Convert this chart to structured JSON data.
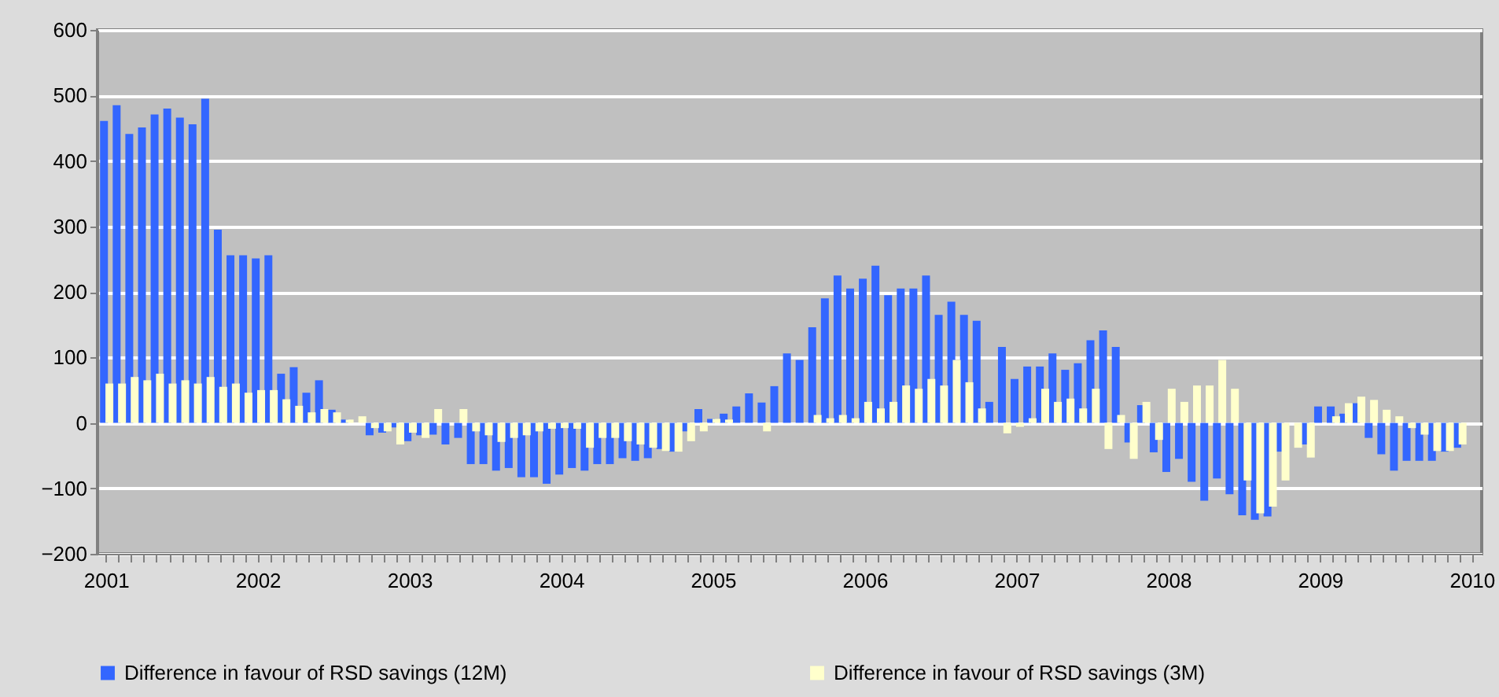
{
  "chart_data": {
    "type": "bar",
    "categories": [
      "2001",
      null,
      null,
      null,
      null,
      null,
      null,
      null,
      null,
      null,
      null,
      null,
      "2002",
      null,
      null,
      null,
      null,
      null,
      null,
      null,
      null,
      null,
      null,
      null,
      "2003",
      null,
      null,
      null,
      null,
      null,
      null,
      null,
      null,
      null,
      null,
      null,
      "2004",
      null,
      null,
      null,
      null,
      null,
      null,
      null,
      null,
      null,
      null,
      null,
      "2005",
      null,
      null,
      null,
      null,
      null,
      null,
      null,
      null,
      null,
      null,
      null,
      "2006",
      null,
      null,
      null,
      null,
      null,
      null,
      null,
      null,
      null,
      null,
      null,
      "2007",
      null,
      null,
      null,
      null,
      null,
      null,
      null,
      null,
      null,
      null,
      null,
      "2008",
      null,
      null,
      null,
      null,
      null,
      null,
      null,
      null,
      null,
      null,
      null,
      "2009",
      null,
      null,
      null,
      null,
      null,
      null,
      null,
      null,
      null,
      null,
      null,
      "2010"
    ],
    "series": [
      {
        "name": "Difference in favour of RSD savings (12M)",
        "color": "#3366ff",
        "values": [
          461,
          485,
          441,
          451,
          471,
          480,
          466,
          456,
          495,
          295,
          256,
          256,
          251,
          256,
          75,
          85,
          46,
          65,
          20,
          5,
          0,
          -19,
          -15,
          -7,
          -28,
          -19,
          -18,
          -33,
          -23,
          -63,
          -63,
          -73,
          -69,
          -83,
          -83,
          -93,
          -79,
          -69,
          -73,
          -63,
          -63,
          -54,
          -58,
          -54,
          -40,
          -44,
          -13,
          21,
          6,
          14,
          25,
          45,
          31,
          56,
          106,
          96,
          146,
          190,
          225,
          205,
          220,
          240,
          195,
          205,
          205,
          225,
          165,
          185,
          165,
          156,
          32,
          116,
          67,
          86,
          86,
          106,
          81,
          91,
          126,
          141,
          116,
          -30,
          27,
          -45,
          -75,
          -55,
          -90,
          -119,
          -85,
          -109,
          -141,
          -148,
          -143,
          -44,
          0,
          -33,
          25,
          25,
          14,
          30,
          -23,
          -48,
          -73,
          -58,
          -58,
          -58,
          -44,
          -38,
          null
        ]
      },
      {
        "name": "Difference in favour of RSD savings (3M)",
        "color": "#ffffcc",
        "values": [
          60,
          60,
          70,
          65,
          75,
          60,
          65,
          60,
          70,
          55,
          60,
          46,
          50,
          50,
          36,
          26,
          16,
          21,
          16,
          5,
          10,
          -8,
          -13,
          -33,
          -15,
          -23,
          21,
          0,
          21,
          -13,
          -19,
          -29,
          -23,
          -19,
          -13,
          -9,
          -8,
          -9,
          -38,
          -23,
          -23,
          -28,
          -33,
          -38,
          -43,
          -44,
          -28,
          -13,
          6,
          5,
          0,
          0,
          -13,
          0,
          0,
          0,
          12,
          7,
          12,
          7,
          32,
          22,
          32,
          57,
          52,
          67,
          57,
          96,
          62,
          22,
          0,
          -16,
          -6,
          7,
          52,
          32,
          37,
          22,
          52,
          -40,
          12,
          -55,
          32,
          -26,
          52,
          32,
          57,
          57,
          96,
          52,
          -88,
          -138,
          -128,
          -88,
          -38,
          -53,
          0,
          10,
          30,
          40,
          35,
          20,
          10,
          -8,
          -18,
          -43,
          -43,
          -33,
          null
        ]
      }
    ],
    "ylim": [
      -200,
      600
    ],
    "yticks": [
      -200,
      -100,
      0,
      100,
      200,
      300,
      400,
      500,
      600
    ],
    "grid": "y",
    "legend": "bottom"
  }
}
